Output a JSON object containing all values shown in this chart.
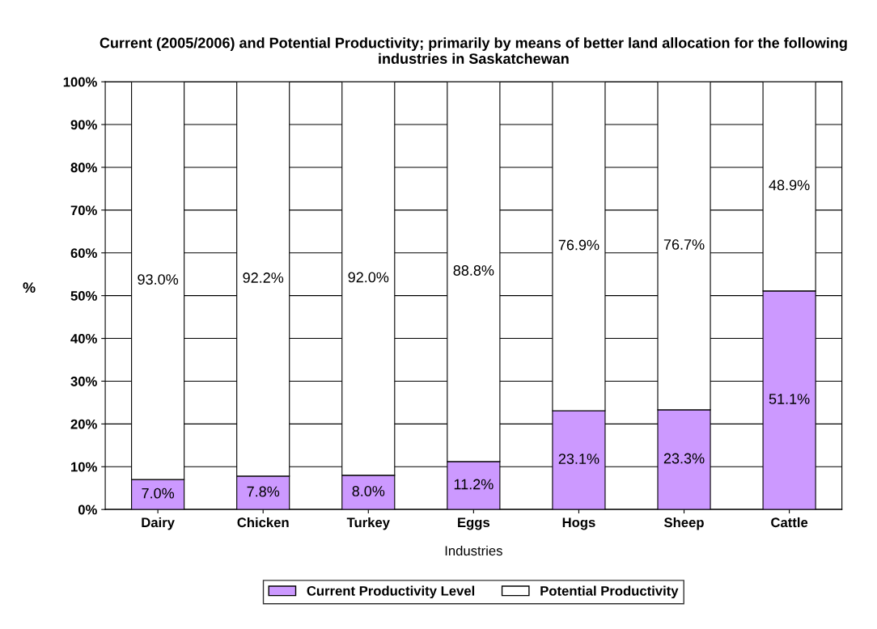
{
  "chart_data": {
    "type": "bar",
    "stacked": true,
    "title": "Current (2005/2006) and Potential Productivity; primarily by means of better land allocation for the following industries in Saskatchewan",
    "xlabel": "Industries",
    "ylabel": "%",
    "categories": [
      "Dairy",
      "Chicken",
      "Turkey",
      "Eggs",
      "Hogs",
      "Sheep",
      "Cattle"
    ],
    "series": [
      {
        "name": "Current Productivity Level",
        "color": "#cc99ff",
        "values": [
          7.0,
          7.8,
          8.0,
          11.2,
          23.1,
          23.3,
          51.1
        ],
        "value_labels": [
          "7.0%",
          "7.8%",
          "8.0%",
          "11.2%",
          "23.1%",
          "23.3%",
          "51.1%"
        ]
      },
      {
        "name": "Potential Productivity",
        "color": "#ffffff",
        "values": [
          93.0,
          92.2,
          92.0,
          88.8,
          76.9,
          76.7,
          48.9
        ],
        "value_labels": [
          "93.0%",
          "92.2%",
          "92.0%",
          "88.8%",
          "76.9%",
          "76.7%",
          "48.9%"
        ]
      }
    ],
    "ylim": [
      0,
      100
    ],
    "yticks": [
      {
        "value": 0,
        "label": "0%"
      },
      {
        "value": 10,
        "label": "10%"
      },
      {
        "value": 20,
        "label": "20%"
      },
      {
        "value": 30,
        "label": "30%"
      },
      {
        "value": 40,
        "label": "40%"
      },
      {
        "value": 50,
        "label": "50%"
      },
      {
        "value": 60,
        "label": "60%"
      },
      {
        "value": 70,
        "label": "70%"
      },
      {
        "value": 80,
        "label": "80%"
      },
      {
        "value": 90,
        "label": "90%"
      },
      {
        "value": 100,
        "label": "100%"
      }
    ],
    "grid": "y",
    "legend": "bottom"
  }
}
